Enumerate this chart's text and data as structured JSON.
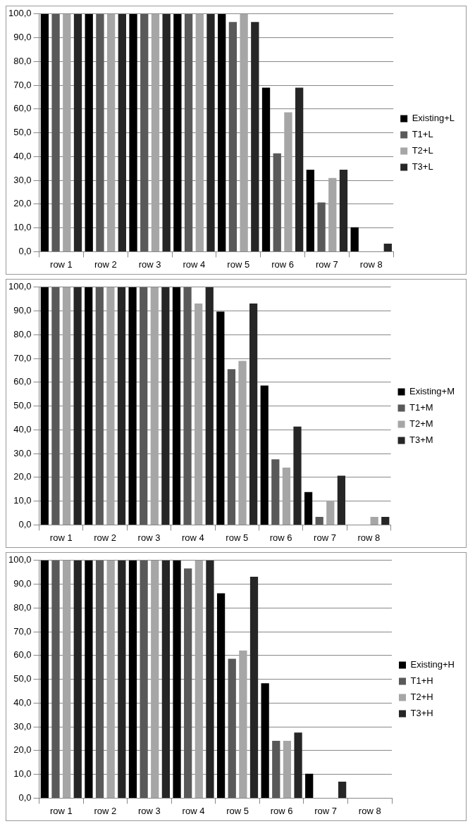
{
  "chart_data": [
    {
      "type": "bar",
      "categories": [
        "row 1",
        "row 2",
        "row 3",
        "row 4",
        "row 5",
        "row 6",
        "row 7",
        "row 8"
      ],
      "ylim": [
        0,
        100
      ],
      "yticks": [
        {
          "value": 0,
          "label": "0,0"
        },
        {
          "value": 10,
          "label": "10,0"
        },
        {
          "value": 20,
          "label": "20,0"
        },
        {
          "value": 30,
          "label": "30,0"
        },
        {
          "value": 40,
          "label": "40,0"
        },
        {
          "value": 50,
          "label": "50,0"
        },
        {
          "value": 60,
          "label": "60,0"
        },
        {
          "value": 70,
          "label": "70,0"
        },
        {
          "value": 80,
          "label": "80,0"
        },
        {
          "value": 90,
          "label": "90,0"
        },
        {
          "value": 100,
          "label": "100,0"
        }
      ],
      "grid": "y",
      "legend": "right",
      "series": [
        {
          "name": "Existing+L",
          "color": "#000000",
          "values": [
            100,
            100,
            100,
            100,
            100,
            69.0,
            34.5,
            10.3
          ]
        },
        {
          "name": "T1+L",
          "color": "#595959",
          "values": [
            100,
            100,
            100,
            100,
            96.6,
            41.4,
            20.7,
            0
          ]
        },
        {
          "name": "T2+L",
          "color": "#a6a6a6",
          "values": [
            100,
            100,
            100,
            100,
            100,
            58.6,
            31.0,
            0
          ]
        },
        {
          "name": "T3+L",
          "color": "#262626",
          "values": [
            100,
            100,
            100,
            100,
            96.6,
            69.0,
            34.5,
            3.4
          ]
        }
      ]
    },
    {
      "type": "bar",
      "categories": [
        "row 1",
        "row 2",
        "row 3",
        "row 4",
        "row 5",
        "row 6",
        "row 7",
        "row 8"
      ],
      "ylim": [
        0,
        100
      ],
      "yticks": [
        {
          "value": 0,
          "label": "0,0"
        },
        {
          "value": 10,
          "label": "10,0"
        },
        {
          "value": 20,
          "label": "20,0"
        },
        {
          "value": 30,
          "label": "30,0"
        },
        {
          "value": 40,
          "label": "40,0"
        },
        {
          "value": 50,
          "label": "50,0"
        },
        {
          "value": 60,
          "label": "60,0"
        },
        {
          "value": 70,
          "label": "70,0"
        },
        {
          "value": 80,
          "label": "80,0"
        },
        {
          "value": 90,
          "label": "90,0"
        },
        {
          "value": 100,
          "label": "100,0"
        }
      ],
      "grid": "y",
      "legend": "right",
      "series": [
        {
          "name": "Existing+M",
          "color": "#000000",
          "values": [
            100,
            100,
            100,
            100,
            89.7,
            58.6,
            13.8,
            0
          ]
        },
        {
          "name": "T1+M",
          "color": "#595959",
          "values": [
            100,
            100,
            100,
            100,
            65.5,
            27.6,
            3.4,
            0
          ]
        },
        {
          "name": "T2+M",
          "color": "#a6a6a6",
          "values": [
            100,
            100,
            100,
            93.1,
            69.0,
            24.1,
            10.3,
            3.4
          ]
        },
        {
          "name": "T3+M",
          "color": "#262626",
          "values": [
            100,
            100,
            100,
            100,
            93.1,
            41.4,
            20.7,
            3.4
          ]
        }
      ]
    },
    {
      "type": "bar",
      "categories": [
        "row 1",
        "row 2",
        "row 3",
        "row 4",
        "row 5",
        "row 6",
        "row 7",
        "row 8"
      ],
      "ylim": [
        0,
        100
      ],
      "yticks": [
        {
          "value": 0,
          "label": "0,0"
        },
        {
          "value": 10,
          "label": "10,0"
        },
        {
          "value": 20,
          "label": "20,0"
        },
        {
          "value": 30,
          "label": "30,0"
        },
        {
          "value": 40,
          "label": "40,0"
        },
        {
          "value": 50,
          "label": "50,0"
        },
        {
          "value": 60,
          "label": "60,0"
        },
        {
          "value": 70,
          "label": "70,0"
        },
        {
          "value": 80,
          "label": "80,0"
        },
        {
          "value": 90,
          "label": "90,0"
        },
        {
          "value": 100,
          "label": "100,0"
        }
      ],
      "grid": "y",
      "legend": "right",
      "series": [
        {
          "name": "Existing+H",
          "color": "#000000",
          "values": [
            100,
            100,
            100,
            100,
            86.2,
            48.3,
            10.3,
            0
          ]
        },
        {
          "name": "T1+H",
          "color": "#595959",
          "values": [
            100,
            100,
            100,
            96.6,
            58.6,
            24.1,
            0,
            0
          ]
        },
        {
          "name": "T2+H",
          "color": "#a6a6a6",
          "values": [
            100,
            100,
            100,
            100,
            62.1,
            24.1,
            0,
            0
          ]
        },
        {
          "name": "T3+H",
          "color": "#262626",
          "values": [
            100,
            100,
            100,
            100,
            93.1,
            27.6,
            6.9,
            0
          ]
        }
      ]
    }
  ]
}
